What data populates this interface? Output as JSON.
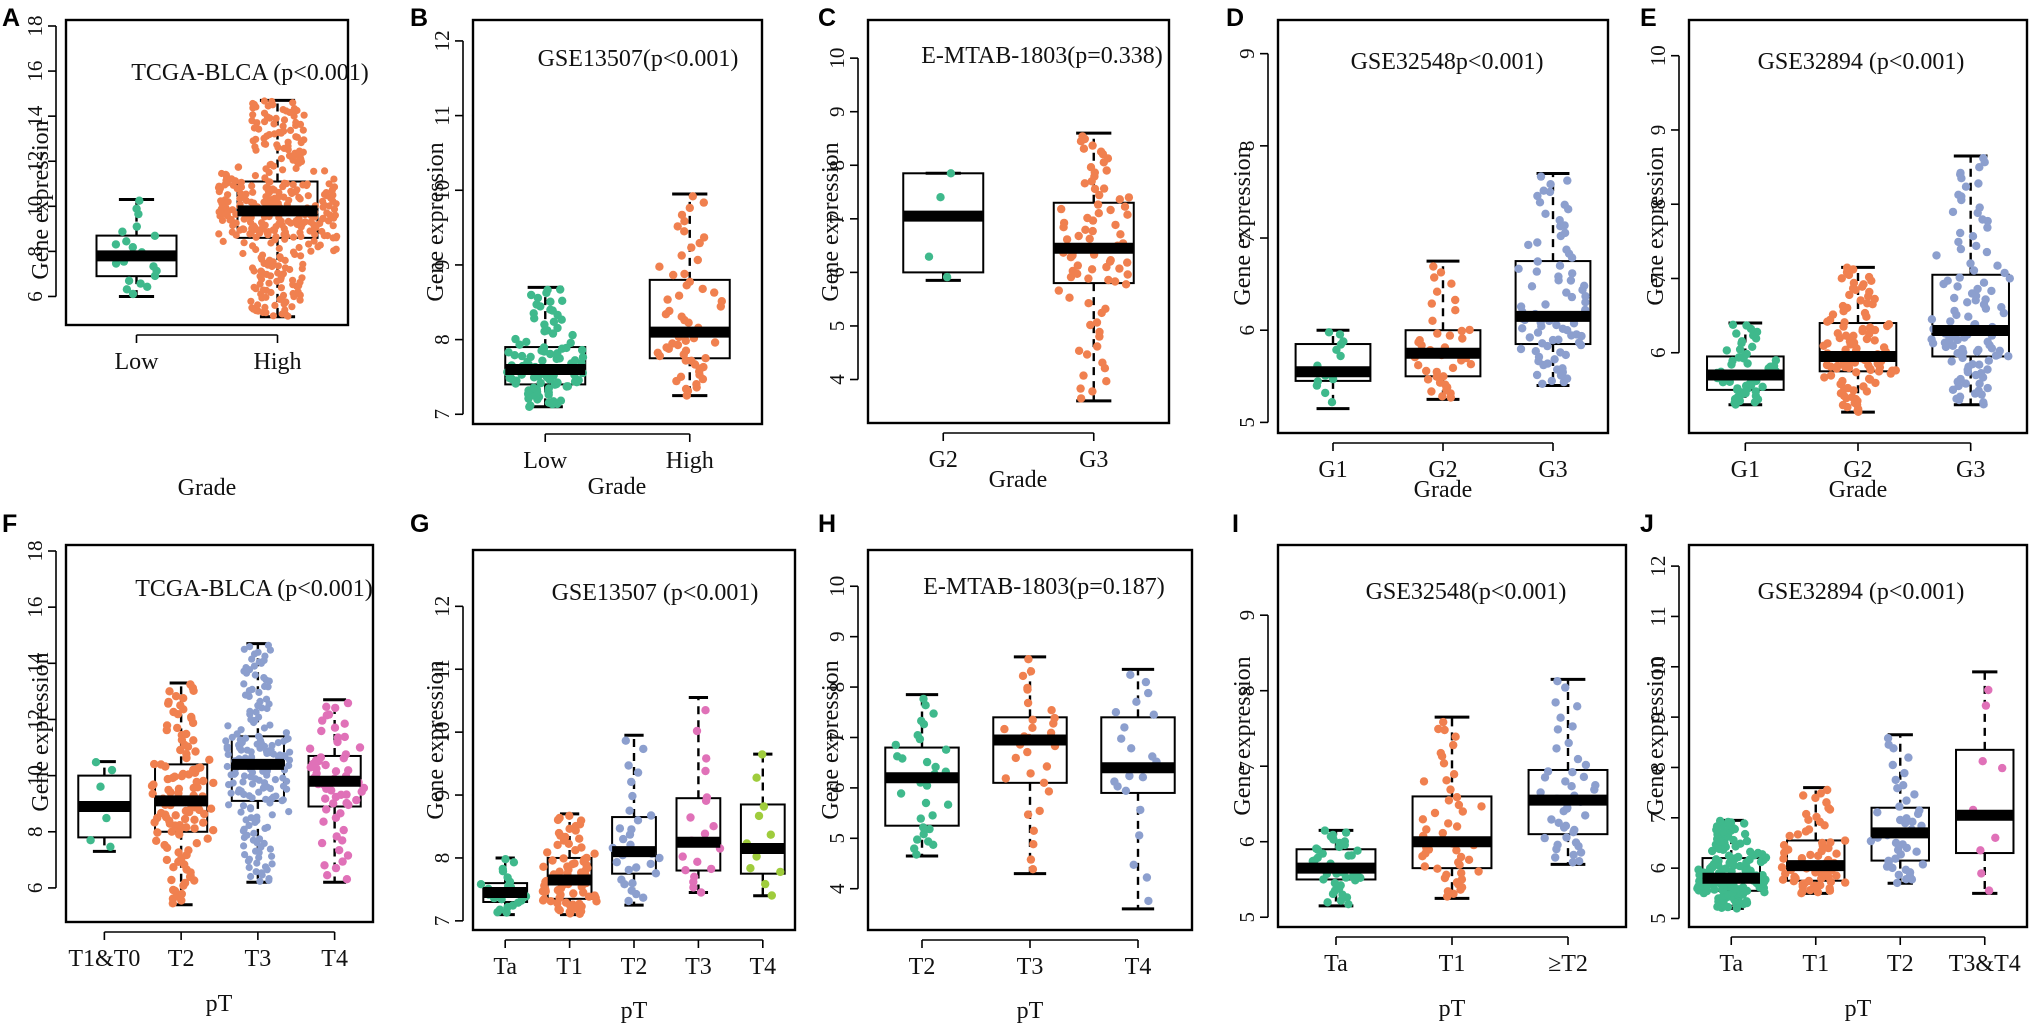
{
  "colors": {
    "green": "#3fb98c",
    "orange": "#f0804f",
    "blue": "#8c9fce",
    "pink": "#e071b8",
    "lime": "#9fcc3c"
  },
  "chart_data": [
    {
      "letter": "A",
      "type": "box",
      "title": "TCGA-BLCA (p<0.001)",
      "xlabel": "Grade",
      "ylabel": "Gene expression",
      "ylim": [
        5,
        18
      ],
      "yticks": [
        6,
        8,
        10,
        12,
        14,
        16,
        18
      ],
      "categories": [
        "Low",
        "High"
      ],
      "n": [
        21,
        380
      ],
      "box": [
        {
          "q1": 6.9,
          "median": 7.8,
          "q3": 8.7,
          "lo": 6.0,
          "hi": 10.3,
          "color": "#3fb98c"
        },
        {
          "q1": 8.6,
          "median": 9.8,
          "q3": 11.1,
          "lo": 5.1,
          "hi": 14.7,
          "color": "#f0804f"
        }
      ]
    },
    {
      "letter": "B",
      "type": "box",
      "title": "GSE13507(p<0.001)",
      "xlabel": "Grade",
      "ylabel": "Gene expression",
      "ylim": [
        6.95,
        12.2
      ],
      "yticks": [
        7,
        8,
        9,
        10,
        11,
        12
      ],
      "categories": [
        "Low",
        "High"
      ],
      "n": [
        105,
        60
      ],
      "box": [
        {
          "q1": 7.4,
          "median": 7.6,
          "q3": 7.9,
          "lo": 7.1,
          "hi": 8.7,
          "color": "#3fb98c"
        },
        {
          "q1": 7.75,
          "median": 8.1,
          "q3": 8.8,
          "lo": 7.25,
          "hi": 9.95,
          "color": "#f0804f"
        }
      ]
    },
    {
      "letter": "C",
      "type": "box",
      "title": "E-MTAB-1803(p=0.338)",
      "xlabel": "Grade",
      "ylabel": "Gene expression",
      "ylim": [
        3.3,
        10.6
      ],
      "yticks": [
        4,
        5,
        6,
        7,
        8,
        9,
        10
      ],
      "categories": [
        "G2",
        "G3"
      ],
      "n": [
        4,
        80
      ],
      "box": [
        {
          "q1": 6.0,
          "median": 7.05,
          "q3": 7.85,
          "lo": 5.85,
          "hi": 7.85,
          "color": "#3fb98c"
        },
        {
          "q1": 5.8,
          "median": 6.45,
          "q3": 7.3,
          "lo": 3.6,
          "hi": 8.6,
          "color": "#f0804f"
        }
      ]
    },
    {
      "letter": "D",
      "type": "box",
      "title": "GSE32548p<0.001)",
      "xlabel": "Grade",
      "ylabel": "Gene expression",
      "ylim": [
        4.95,
        9.3
      ],
      "yticks": [
        5,
        6,
        7,
        8,
        9
      ],
      "categories": [
        "G1",
        "G2",
        "G3"
      ],
      "n": [
        14,
        40,
        80
      ],
      "box": [
        {
          "q1": 5.45,
          "median": 5.55,
          "q3": 5.85,
          "lo": 5.15,
          "hi": 6.0,
          "color": "#3fb98c"
        },
        {
          "q1": 5.5,
          "median": 5.75,
          "q3": 6.0,
          "lo": 5.25,
          "hi": 6.75,
          "color": "#f0804f"
        },
        {
          "q1": 5.85,
          "median": 6.15,
          "q3": 6.75,
          "lo": 5.4,
          "hi": 7.7,
          "color": "#8c9fce"
        }
      ]
    },
    {
      "letter": "E",
      "type": "box",
      "title": "GSE32894 (p<0.001)",
      "xlabel": "Grade",
      "ylabel": "Gene expression",
      "ylim": [
        5.0,
        10.4
      ],
      "yticks": [
        6,
        7,
        8,
        9,
        10
      ],
      "categories": [
        "G1",
        "G2",
        "G3"
      ],
      "n": [
        55,
        110,
        110
      ],
      "box": [
        {
          "q1": 5.5,
          "median": 5.7,
          "q3": 5.95,
          "lo": 5.3,
          "hi": 6.4,
          "color": "#3fb98c"
        },
        {
          "q1": 5.75,
          "median": 5.95,
          "q3": 6.4,
          "lo": 5.2,
          "hi": 7.15,
          "color": "#f0804f"
        },
        {
          "q1": 5.95,
          "median": 6.3,
          "q3": 7.05,
          "lo": 5.3,
          "hi": 8.65,
          "color": "#8c9fce"
        }
      ]
    },
    {
      "letter": "F",
      "type": "box",
      "title": "TCGA-BLCA (p<0.001)",
      "xlabel": "pT",
      "ylabel": "Gene expression",
      "ylim": [
        5,
        18
      ],
      "yticks": [
        6,
        8,
        10,
        12,
        14,
        16,
        18
      ],
      "categories": [
        "T1&T0",
        "T2",
        "T3",
        "T4"
      ],
      "n": [
        7,
        120,
        190,
        60
      ],
      "box": [
        {
          "q1": 7.8,
          "median": 8.9,
          "q3": 10.0,
          "lo": 7.3,
          "hi": 10.5,
          "color": "#3fb98c"
        },
        {
          "q1": 8.0,
          "median": 9.1,
          "q3": 10.4,
          "lo": 5.4,
          "hi": 13.3,
          "color": "#f0804f"
        },
        {
          "q1": 9.1,
          "median": 10.4,
          "q3": 11.4,
          "lo": 6.2,
          "hi": 14.7,
          "color": "#8c9fce"
        },
        {
          "q1": 8.9,
          "median": 9.8,
          "q3": 10.7,
          "lo": 6.2,
          "hi": 12.7,
          "color": "#e071b8"
        }
      ]
    },
    {
      "letter": "G",
      "type": "box",
      "title": "GSE13507 (p<0.001)",
      "xlabel": "pT",
      "ylabel": "Gene expression",
      "ylim": [
        6.95,
        12.8
      ],
      "yticks": [
        7,
        8,
        9,
        10,
        11,
        12
      ],
      "categories": [
        "Ta",
        "T1",
        "T2",
        "T3",
        "T4"
      ],
      "n": [
        24,
        80,
        30,
        19,
        11
      ],
      "box": [
        {
          "q1": 7.3,
          "median": 7.45,
          "q3": 7.6,
          "lo": 7.1,
          "hi": 8.0,
          "color": "#3fb98c"
        },
        {
          "q1": 7.35,
          "median": 7.65,
          "q3": 8.0,
          "lo": 7.1,
          "hi": 8.7,
          "color": "#f0804f"
        },
        {
          "q1": 7.75,
          "median": 8.1,
          "q3": 8.65,
          "lo": 7.25,
          "hi": 9.95,
          "color": "#8c9fce"
        },
        {
          "q1": 7.8,
          "median": 8.25,
          "q3": 8.95,
          "lo": 7.45,
          "hi": 10.55,
          "color": "#e071b8"
        },
        {
          "q1": 7.75,
          "median": 8.15,
          "q3": 8.85,
          "lo": 7.4,
          "hi": 9.65,
          "color": "#9fcc3c"
        }
      ]
    },
    {
      "letter": "H",
      "type": "box",
      "title": "E-MTAB-1803(p=0.187)",
      "xlabel": "pT",
      "ylabel": "Gene expression",
      "ylim": [
        3.3,
        10.6
      ],
      "yticks": [
        4,
        5,
        6,
        7,
        8,
        9,
        10
      ],
      "categories": [
        "T2",
        "T3",
        "T4"
      ],
      "n": [
        30,
        30,
        22
      ],
      "box": [
        {
          "q1": 5.25,
          "median": 6.2,
          "q3": 6.8,
          "lo": 4.65,
          "hi": 7.85,
          "color": "#3fb98c"
        },
        {
          "q1": 6.1,
          "median": 6.95,
          "q3": 7.4,
          "lo": 4.3,
          "hi": 8.6,
          "color": "#f0804f"
        },
        {
          "q1": 5.9,
          "median": 6.4,
          "q3": 7.4,
          "lo": 3.6,
          "hi": 8.35,
          "color": "#8c9fce"
        }
      ]
    },
    {
      "letter": "I",
      "type": "box",
      "title": "GSE32548(p<0.001)",
      "xlabel": "pT",
      "ylabel": "Gene expression",
      "ylim": [
        4.95,
        9.85
      ],
      "yticks": [
        5,
        6,
        7,
        8,
        9
      ],
      "categories": [
        "Ta",
        "T1",
        "≥T2"
      ],
      "n": [
        45,
        50,
        45
      ],
      "box": [
        {
          "q1": 5.5,
          "median": 5.65,
          "q3": 5.9,
          "lo": 5.15,
          "hi": 6.15,
          "color": "#3fb98c"
        },
        {
          "q1": 5.65,
          "median": 6.0,
          "q3": 6.6,
          "lo": 5.25,
          "hi": 7.65,
          "color": "#f0804f"
        },
        {
          "q1": 6.1,
          "median": 6.55,
          "q3": 6.95,
          "lo": 5.7,
          "hi": 8.15,
          "color": "#8c9fce"
        }
      ]
    },
    {
      "letter": "J",
      "type": "box",
      "title": "GSE32894 (p<0.001)",
      "xlabel": "pT",
      "ylabel": "Gene expression",
      "ylim": [
        4.95,
        12.3
      ],
      "yticks": [
        5,
        6,
        7,
        8,
        9,
        10,
        11,
        12
      ],
      "categories": [
        "Ta",
        "T1",
        "T2",
        "T3&T4"
      ],
      "n": [
        150,
        70,
        45,
        10
      ],
      "box": [
        {
          "q1": 5.55,
          "median": 5.8,
          "q3": 6.2,
          "lo": 5.2,
          "hi": 6.95,
          "color": "#3fb98c"
        },
        {
          "q1": 5.75,
          "median": 6.05,
          "q3": 6.55,
          "lo": 5.5,
          "hi": 7.6,
          "color": "#f0804f"
        },
        {
          "q1": 6.15,
          "median": 6.7,
          "q3": 7.2,
          "lo": 5.7,
          "hi": 8.65,
          "color": "#8c9fce"
        },
        {
          "q1": 6.3,
          "median": 7.05,
          "q3": 8.35,
          "lo": 5.5,
          "hi": 9.9,
          "color": "#e071b8"
        }
      ]
    }
  ]
}
